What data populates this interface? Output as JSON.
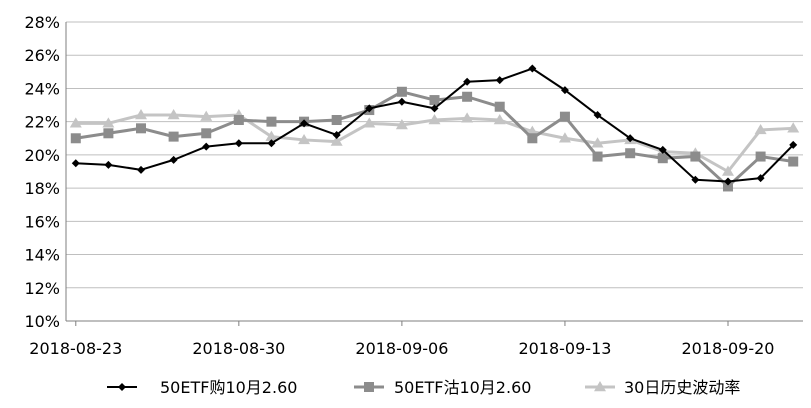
{
  "chart_data": {
    "type": "line",
    "title": "",
    "xlabel": "",
    "ylabel": "",
    "x": [
      "2018-08-23",
      "2018-08-24",
      "2018-08-27",
      "2018-08-28",
      "2018-08-29",
      "2018-08-30",
      "2018-08-31",
      "2018-09-03",
      "2018-09-04",
      "2018-09-05",
      "2018-09-06",
      "2018-09-07",
      "2018-09-10",
      "2018-09-11",
      "2018-09-12",
      "2018-09-13",
      "2018-09-14",
      "2018-09-17",
      "2018-09-18",
      "2018-09-19",
      "2018-09-20",
      "2018-09-21",
      "2018-09-25"
    ],
    "x_tick_labels": [
      "2018-08-23",
      "2018-08-30",
      "2018-09-06",
      "2018-09-13",
      "2018-09-20"
    ],
    "x_tick_index": [
      0,
      5,
      10,
      15,
      20
    ],
    "ylim": [
      10,
      28
    ],
    "y_ticks": [
      10,
      12,
      14,
      16,
      18,
      20,
      22,
      24,
      26,
      28
    ],
    "y_tick_labels": [
      "10%",
      "12%",
      "14%",
      "16%",
      "18%",
      "20%",
      "22%",
      "24%",
      "26%",
      "28%"
    ],
    "grid": "horizontal",
    "legend_position": "bottom",
    "series": [
      {
        "name": "50ETF购10月2.60",
        "color": "#000000",
        "marker": "diamond",
        "values": [
          19.5,
          19.4,
          19.1,
          19.7,
          20.5,
          20.7,
          20.7,
          21.9,
          21.2,
          22.8,
          23.2,
          22.8,
          24.4,
          24.5,
          25.2,
          23.9,
          22.4,
          21.0,
          20.3,
          18.5,
          18.4,
          18.6,
          20.6
        ]
      },
      {
        "name": "50ETF沽10月2.60",
        "color": "#8c8c8c",
        "marker": "square",
        "values": [
          21.0,
          21.3,
          21.6,
          21.1,
          21.3,
          22.1,
          22.0,
          22.0,
          22.1,
          22.7,
          23.8,
          23.3,
          23.5,
          22.9,
          21.0,
          22.3,
          19.9,
          20.1,
          19.8,
          19.9,
          18.1,
          19.9,
          19.6
        ]
      },
      {
        "name": "30日历史波动率",
        "color": "#c4c4c4",
        "marker": "triangle",
        "values": [
          21.9,
          21.9,
          22.4,
          22.4,
          22.3,
          22.4,
          21.1,
          20.9,
          20.8,
          21.9,
          21.8,
          22.1,
          22.2,
          22.1,
          21.4,
          21.0,
          20.7,
          20.9,
          20.2,
          20.1,
          19.0,
          21.5,
          21.6
        ]
      }
    ]
  }
}
